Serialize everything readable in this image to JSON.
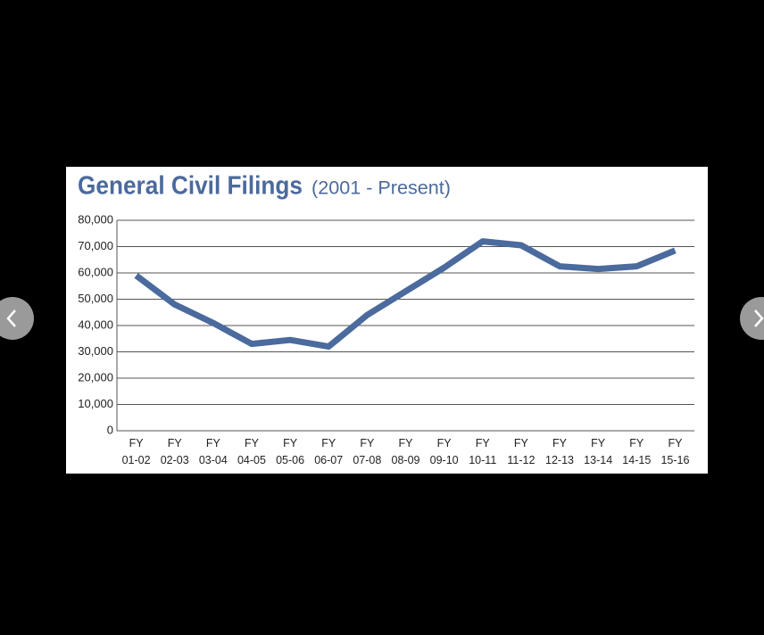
{
  "chart_data": {
    "type": "line",
    "title": "General Civil Filings",
    "subtitle": "(2001 - Present)",
    "categories": [
      "FY 01-02",
      "FY 02-03",
      "FY 03-04",
      "FY 04-05",
      "FY 05-06",
      "FY 06-07",
      "FY 07-08",
      "FY 08-09",
      "FY 09-10",
      "FY 10-11",
      "FY 11-12",
      "FY 12-13",
      "FY 13-14",
      "FY 14-15",
      "FY 15-16"
    ],
    "series": [
      {
        "name": "General Civil Filings",
        "color": "#4b6a9d",
        "values": [
          59000,
          48000,
          41000,
          33000,
          34500,
          32000,
          44000,
          53000,
          62000,
          72000,
          70500,
          62500,
          61500,
          62500,
          68500
        ]
      }
    ],
    "ylim": [
      0,
      80000
    ],
    "yticks": [
      0,
      {
        "value": 10000,
        "label": "10,000"
      },
      {
        "value": 20000,
        "label": "20,000"
      },
      {
        "value": 30000,
        "label": "30,000"
      },
      {
        "value": 40000,
        "label": "40,000"
      },
      {
        "value": 50000,
        "label": "50,000"
      },
      {
        "value": 60000,
        "label": "60,000"
      },
      {
        "value": 70000,
        "label": "70,000"
      },
      {
        "value": 80000,
        "label": "80,000"
      }
    ],
    "grid": true
  }
}
